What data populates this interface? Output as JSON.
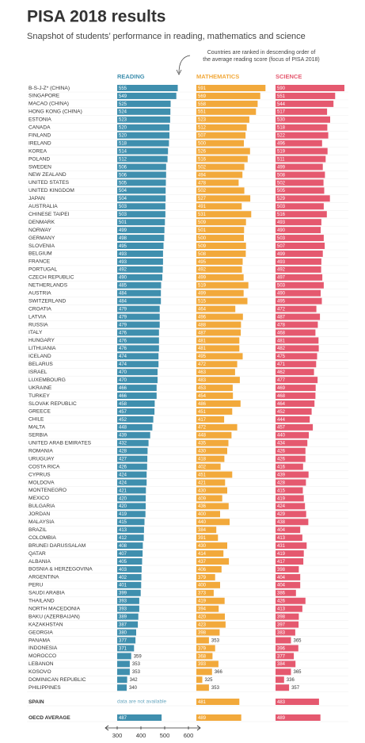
{
  "chart_data": {
    "type": "bar",
    "title": "PISA 2018 results",
    "subtitle": "Snapshot of students’ performance in reading, mathematics and science",
    "annotation": [
      "Countries are ranked in descending order of",
      "the average reading score (focus of PISA 2018)"
    ],
    "missing_note": "data are not available",
    "categories": [
      "B-S-J-Z* (CHINA)",
      "SINGAPORE",
      "MACAO (CHINA)",
      "HONG KONG (CHINA)",
      "ESTONIA",
      "CANADA",
      "FINLAND",
      "IRELAND",
      "KOREA",
      "POLAND",
      "SWEDEN",
      "NEW ZEALAND",
      "UNITED STATES",
      "UNITED KINGDOM",
      "JAPAN",
      "AUSTRALIA",
      "CHINESE TAIPEI",
      "DENMARK",
      "NORWAY",
      "GERMANY",
      "SLOVENIA",
      "BELGIUM",
      "FRANCE",
      "PORTUGAL",
      "CZECH REPUBLIC",
      "NETHERLANDS",
      "AUSTRIA",
      "SWITZERLAND",
      "CROATIA",
      "LATVIA",
      "RUSSIA",
      "ITALY",
      "HUNGARY",
      "LITHUANIA",
      "ICELAND",
      "BELARUS",
      "ISRAEL",
      "LUXEMBOURG",
      "UKRAINE",
      "TURKEY",
      "SLOVAK REPUBLIC",
      "GREECE",
      "CHILE",
      "MALTA",
      "SERBIA",
      "UNITED ARAB EMIRATES",
      "ROMANIA",
      "URUGUAY",
      "COSTA RICA",
      "CYPRUS",
      "MOLDOVA",
      "MONTENEGRO",
      "MEXICO",
      "BULGARIA",
      "JORDAN",
      "MALAYSIA",
      "BRAZIL",
      "COLOMBIA",
      "BRUNEI DARUSSALAM",
      "QATAR",
      "ALBANIA",
      "BOSNIA & HERZEGOVINA",
      "ARGENTINA",
      "PERU",
      "SAUDI ARABIA",
      "THAILAND",
      "NORTH MACEDONIA",
      "BAKU (AZERBAIJAN)",
      "KAZAKHSTAN",
      "GEORGIA",
      "PANAMA",
      "INDONESIA",
      "MOROCCO",
      "LEBANON",
      "KOSOVO",
      "DOMINICAN REPUBLIC",
      "PHILIPPINES",
      "SPAIN",
      "OECD AVERAGE"
    ],
    "series": [
      {
        "name": "READING",
        "color": "#3f8fae",
        "values": [
          555,
          549,
          525,
          524,
          523,
          520,
          520,
          518,
          514,
          512,
          506,
          506,
          505,
          504,
          504,
          503,
          503,
          501,
          499,
          498,
          495,
          493,
          493,
          492,
          490,
          485,
          484,
          484,
          479,
          479,
          479,
          476,
          476,
          476,
          474,
          474,
          470,
          470,
          466,
          466,
          458,
          457,
          452,
          448,
          439,
          432,
          428,
          427,
          426,
          424,
          424,
          421,
          420,
          420,
          419,
          415,
          413,
          412,
          408,
          407,
          405,
          403,
          402,
          401,
          399,
          393,
          393,
          389,
          387,
          380,
          377,
          371,
          359,
          353,
          353,
          342,
          340,
          null,
          487
        ]
      },
      {
        "name": "MATHEMATICS",
        "color": "#f2a93b",
        "values": [
          591,
          569,
          558,
          551,
          523,
          512,
          507,
          500,
          526,
          516,
          502,
          494,
          478,
          502,
          527,
          491,
          531,
          509,
          501,
          500,
          509,
          508,
          495,
          492,
          499,
          519,
          499,
          515,
          464,
          496,
          488,
          487,
          481,
          481,
          495,
          472,
          463,
          483,
          453,
          454,
          486,
          451,
          417,
          472,
          448,
          435,
          430,
          418,
          402,
          451,
          421,
          430,
          409,
          436,
          400,
          440,
          384,
          391,
          430,
          414,
          437,
          406,
          379,
          400,
          373,
          419,
          394,
          420,
          423,
          398,
          353,
          379,
          368,
          393,
          366,
          325,
          353,
          481,
          489
        ]
      },
      {
        "name": "SCIENCE",
        "color": "#e5596f",
        "values": [
          590,
          551,
          544,
          517,
          530,
          518,
          522,
          496,
          519,
          511,
          499,
          508,
          502,
          505,
          529,
          503,
          516,
          493,
          490,
          503,
          507,
          499,
          493,
          492,
          497,
          503,
          490,
          495,
          472,
          487,
          478,
          468,
          481,
          482,
          475,
          471,
          462,
          477,
          469,
          468,
          464,
          452,
          444,
          457,
          440,
          434,
          426,
          426,
          416,
          439,
          428,
          415,
          419,
          424,
          429,
          438,
          404,
          413,
          431,
          419,
          417,
          398,
          404,
          404,
          386,
          426,
          413,
          398,
          397,
          383,
          365,
          396,
          377,
          384,
          365,
          336,
          357,
          483,
          489
        ]
      }
    ],
    "xlim": [
      300,
      600
    ],
    "xticks": [
      300,
      400,
      500,
      600
    ]
  }
}
